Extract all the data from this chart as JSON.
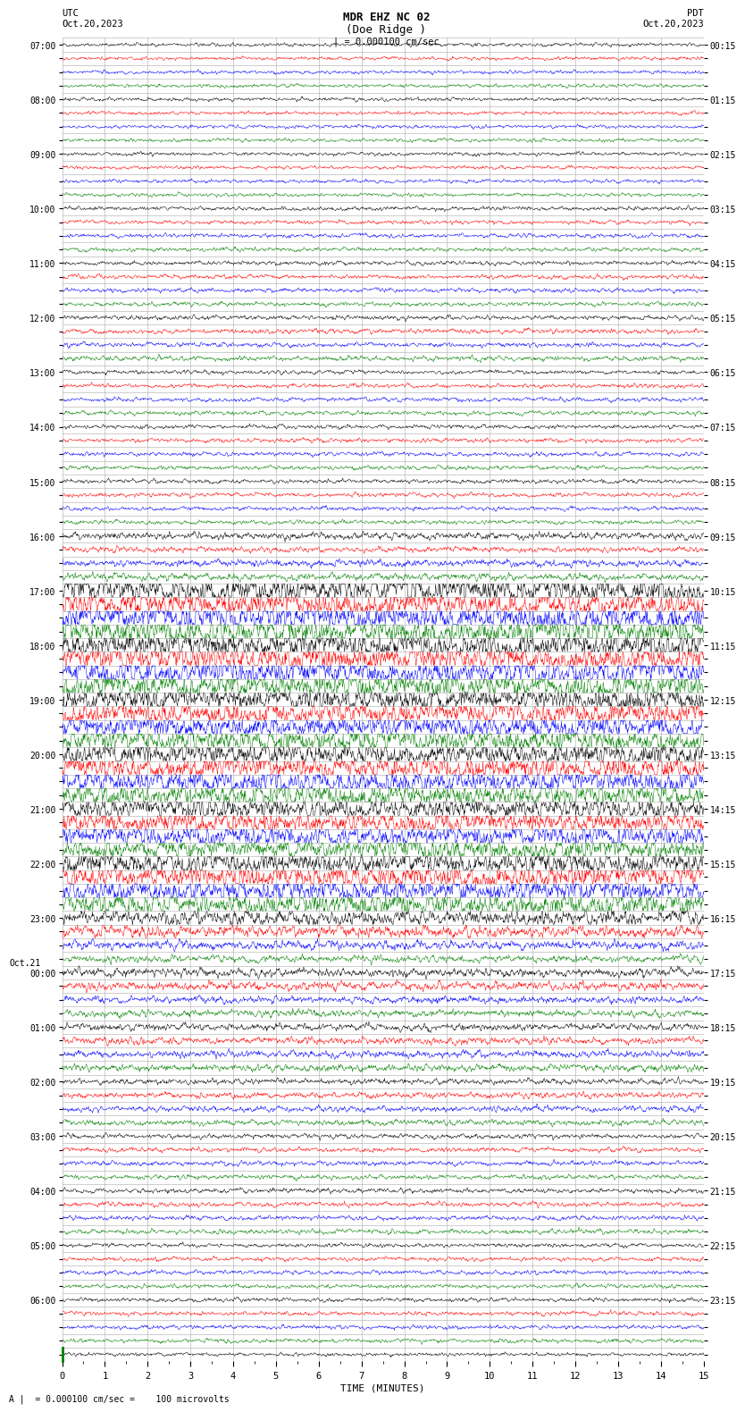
{
  "title_line1": "MDR EHZ NC 02",
  "title_line2": "(Doe Ridge )",
  "scale_label": "| = 0.000100 cm/sec",
  "bottom_label": "A |  = 0.000100 cm/sec =    100 microvolts",
  "xlabel": "TIME (MINUTES)",
  "utc_label": "UTC",
  "utc_date": "Oct.20,2023",
  "pdt_label": "PDT",
  "pdt_date": "Oct.20,2023",
  "left_times": [
    "07:00",
    "",
    "",
    "",
    "08:00",
    "",
    "",
    "",
    "09:00",
    "",
    "",
    "",
    "10:00",
    "",
    "",
    "",
    "11:00",
    "",
    "",
    "",
    "12:00",
    "",
    "",
    "",
    "13:00",
    "",
    "",
    "",
    "14:00",
    "",
    "",
    "",
    "15:00",
    "",
    "",
    "",
    "16:00",
    "",
    "",
    "",
    "17:00",
    "",
    "",
    "",
    "18:00",
    "",
    "",
    "",
    "19:00",
    "",
    "",
    "",
    "20:00",
    "",
    "",
    "",
    "21:00",
    "",
    "",
    "",
    "22:00",
    "",
    "",
    "",
    "23:00",
    "",
    "",
    "",
    "Oct.21",
    "00:00",
    "",
    "",
    "",
    "01:00",
    "",
    "",
    "",
    "02:00",
    "",
    "",
    "",
    "03:00",
    "",
    "",
    "",
    "04:00",
    "",
    "",
    "",
    "05:00",
    "",
    "",
    "",
    "06:00",
    ""
  ],
  "right_times": [
    "00:15",
    "",
    "",
    "",
    "01:15",
    "",
    "",
    "",
    "02:15",
    "",
    "",
    "",
    "03:15",
    "",
    "",
    "",
    "04:15",
    "",
    "",
    "",
    "05:15",
    "",
    "",
    "",
    "06:15",
    "",
    "",
    "",
    "07:15",
    "",
    "",
    "",
    "08:15",
    "",
    "",
    "",
    "09:15",
    "",
    "",
    "",
    "10:15",
    "",
    "",
    "",
    "11:15",
    "",
    "",
    "",
    "12:15",
    "",
    "",
    "",
    "13:15",
    "",
    "",
    "",
    "14:15",
    "",
    "",
    "",
    "15:15",
    "",
    "",
    "",
    "16:15",
    "",
    "",
    "",
    "17:15",
    "",
    "",
    "",
    "18:15",
    "",
    "",
    "",
    "19:15",
    "",
    "",
    "",
    "20:15",
    "",
    "",
    "",
    "21:15",
    "",
    "",
    "",
    "22:15",
    "",
    "",
    "",
    "23:15",
    ""
  ],
  "colors_cycle": [
    "black",
    "red",
    "blue",
    "green"
  ],
  "n_rows": 97,
  "minutes": 15,
  "background_color": "white",
  "grid_color": "#aaaaaa",
  "noise_seed": 42,
  "amplitude_quiet": 0.06,
  "amplitude_medium": 0.25,
  "amplitude_loud": 0.45,
  "row_amplitudes": [
    0.06,
    0.06,
    0.06,
    0.06,
    0.06,
    0.06,
    0.06,
    0.06,
    0.06,
    0.06,
    0.06,
    0.06,
    0.07,
    0.07,
    0.07,
    0.07,
    0.07,
    0.07,
    0.07,
    0.07,
    0.08,
    0.08,
    0.08,
    0.08,
    0.07,
    0.07,
    0.07,
    0.07,
    0.07,
    0.07,
    0.07,
    0.07,
    0.07,
    0.07,
    0.07,
    0.07,
    0.12,
    0.1,
    0.12,
    0.12,
    0.45,
    0.45,
    0.45,
    0.45,
    0.45,
    0.45,
    0.45,
    0.45,
    0.4,
    0.4,
    0.4,
    0.4,
    0.4,
    0.4,
    0.4,
    0.4,
    0.35,
    0.35,
    0.35,
    0.35,
    0.4,
    0.4,
    0.4,
    0.4,
    0.25,
    0.2,
    0.15,
    0.12,
    0.15,
    0.15,
    0.12,
    0.12,
    0.12,
    0.12,
    0.12,
    0.12,
    0.1,
    0.1,
    0.1,
    0.1,
    0.08,
    0.08,
    0.08,
    0.08,
    0.08,
    0.08,
    0.08,
    0.08,
    0.07,
    0.07,
    0.07,
    0.07,
    0.07,
    0.07,
    0.07,
    0.07,
    0.06
  ]
}
